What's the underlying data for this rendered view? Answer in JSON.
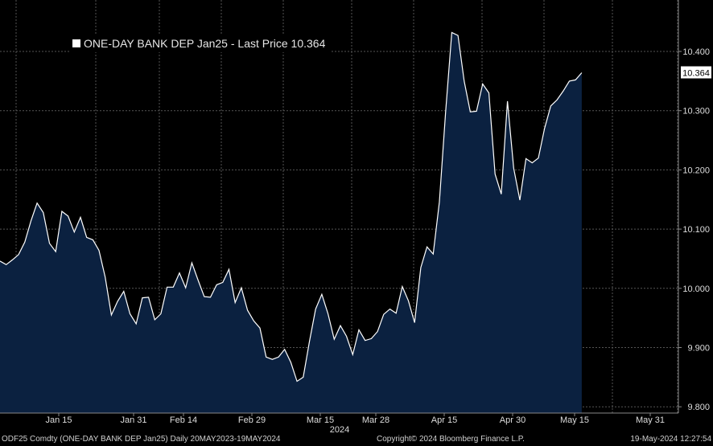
{
  "legend": {
    "label": "ONE-DAY BANK DEP Jan25 - Last Price 10.364"
  },
  "footer": {
    "left": "ODF25 Comdty (ONE-DAY BANK DEP  Jan25)  Daily 20MAY2023-19MAY2024",
    "center": "Copyright© 2024 Bloomberg Finance L.P.",
    "right": "19-May-2024 12:27:54"
  },
  "colors": {
    "background": "#000000",
    "line": "#ffffff",
    "area": "#0b2140",
    "grid": "#555555"
  },
  "chart_data": {
    "type": "area",
    "series": [
      {
        "name": "ONE-DAY BANK DEP Jan25",
        "values": [
          10.046,
          10.04,
          10.048,
          10.057,
          10.078,
          10.114,
          10.144,
          10.128,
          10.076,
          10.062,
          10.13,
          10.122,
          10.095,
          10.12,
          10.086,
          10.082,
          10.064,
          10.019,
          9.955,
          9.978,
          9.995,
          9.957,
          9.94,
          9.984,
          9.985,
          9.947,
          9.957,
          10.002,
          10.002,
          10.026,
          10.001,
          10.043,
          10.014,
          9.986,
          9.985,
          10.006,
          10.01,
          10.032,
          9.976,
          10.001,
          9.963,
          9.945,
          9.933,
          9.884,
          9.88,
          9.884,
          9.897,
          9.875,
          9.843,
          9.85,
          9.91,
          9.965,
          9.99,
          9.957,
          9.914,
          9.937,
          9.919,
          9.888,
          9.93,
          9.912,
          9.915,
          9.927,
          9.956,
          9.965,
          9.958,
          10.003,
          9.979,
          9.942,
          10.035,
          10.07,
          10.058,
          10.146,
          10.297,
          10.432,
          10.427,
          10.35,
          10.298,
          10.299,
          10.345,
          10.33,
          10.193,
          10.159,
          10.316,
          10.203,
          10.149,
          10.219,
          10.212,
          10.22,
          10.27,
          10.308,
          10.318,
          10.333,
          10.35,
          10.352,
          10.364
        ]
      }
    ],
    "x_ticks": [
      "Jan 15",
      "Jan 31",
      "Feb 14",
      "Feb 29",
      "Mar 15",
      "Mar 28",
      "Apr 15",
      "Apr 30",
      "May 15",
      "May 31"
    ],
    "x_year_label": "2024",
    "y_ticks": [
      "9.800",
      "9.900",
      "10.000",
      "10.100",
      "10.200",
      "10.300",
      "10.400"
    ],
    "ylim": [
      9.8,
      10.45
    ],
    "last_price_label": "10.364",
    "grid": true,
    "legend_position": "top-left"
  }
}
